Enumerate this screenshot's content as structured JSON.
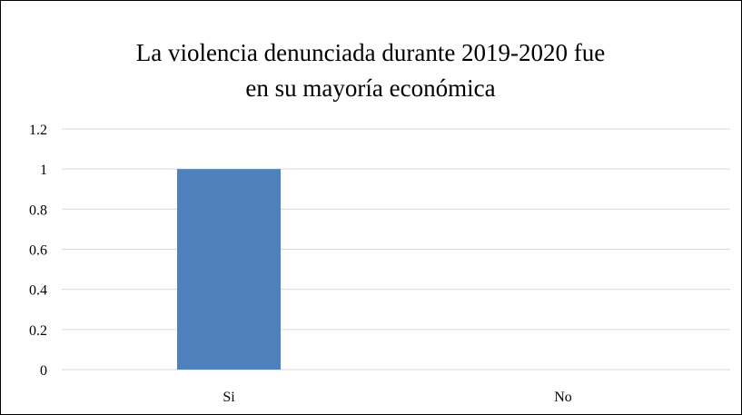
{
  "chart_data": {
    "type": "bar",
    "title_lines": [
      "La violencia denunciada durante 2019-2020 fue",
      "en su mayoría económica"
    ],
    "categories": [
      "Si",
      "No"
    ],
    "values": [
      1,
      0
    ],
    "y_ticks": [
      "0",
      "0.2",
      "0.4",
      "0.6",
      "0.8",
      "1",
      "1.2"
    ],
    "ylim": [
      0,
      1.2
    ],
    "grid": true,
    "legend": "none",
    "bar_color": "#4f81bd",
    "grid_color": "#d9d9d9"
  }
}
